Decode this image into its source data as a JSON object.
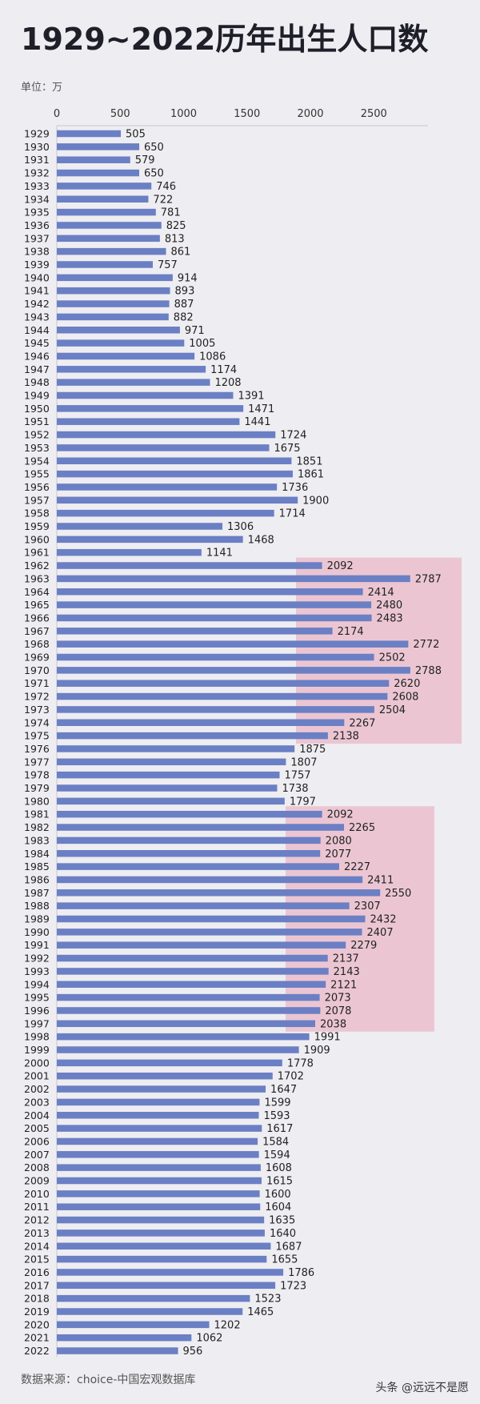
{
  "page": {
    "title": "1929~2022历年出生人口数",
    "unit": "单位：万",
    "source": "数据来源：choice-中国宏观数据库",
    "platform_mark": "头条 @远远不是愿"
  },
  "chart_data": {
    "type": "bar",
    "orientation": "horizontal",
    "title": "1929~2022历年出生人口数",
    "xlim": [
      0,
      2900
    ],
    "xticks": [
      0,
      500,
      1000,
      1500,
      2000,
      2500
    ],
    "grid": false,
    "bar_color": "#6b7fc4",
    "highlight_color": "#e9a5b8",
    "highlight_ranges": [
      [
        "1962",
        "1975"
      ],
      [
        "1981",
        "1997"
      ]
    ],
    "categories": [
      "1929",
      "1930",
      "1931",
      "1932",
      "1933",
      "1934",
      "1935",
      "1936",
      "1937",
      "1938",
      "1939",
      "1940",
      "1941",
      "1942",
      "1943",
      "1944",
      "1945",
      "1946",
      "1947",
      "1948",
      "1949",
      "1950",
      "1951",
      "1952",
      "1953",
      "1954",
      "1955",
      "1956",
      "1957",
      "1958",
      "1959",
      "1960",
      "1961",
      "1962",
      "1963",
      "1964",
      "1965",
      "1966",
      "1967",
      "1968",
      "1969",
      "1970",
      "1971",
      "1972",
      "1973",
      "1974",
      "1975",
      "1976",
      "1977",
      "1978",
      "1979",
      "1980",
      "1981",
      "1982",
      "1983",
      "1984",
      "1985",
      "1986",
      "1987",
      "1988",
      "1989",
      "1990",
      "1991",
      "1992",
      "1993",
      "1994",
      "1995",
      "1996",
      "1997",
      "1998",
      "1999",
      "2000",
      "2001",
      "2002",
      "2003",
      "2004",
      "2005",
      "2006",
      "2007",
      "2008",
      "2009",
      "2010",
      "2011",
      "2012",
      "2013",
      "2014",
      "2015",
      "2016",
      "2017",
      "2018",
      "2019",
      "2020",
      "2021",
      "2022"
    ],
    "values": [
      505,
      650,
      579,
      650,
      746,
      722,
      781,
      825,
      813,
      861,
      757,
      914,
      893,
      887,
      882,
      971,
      1005,
      1086,
      1174,
      1208,
      1391,
      1471,
      1441,
      1724,
      1675,
      1851,
      1861,
      1736,
      1900,
      1714,
      1306,
      1468,
      1141,
      2092,
      2787,
      2414,
      2480,
      2483,
      2174,
      2772,
      2502,
      2788,
      2620,
      2608,
      2504,
      2267,
      2138,
      1875,
      1807,
      1757,
      1738,
      1797,
      2092,
      2265,
      2080,
      2077,
      2227,
      2411,
      2550,
      2307,
      2432,
      2407,
      2279,
      2137,
      2143,
      2121,
      2073,
      2078,
      2038,
      1991,
      1909,
      1778,
      1702,
      1647,
      1599,
      1593,
      1617,
      1584,
      1594,
      1608,
      1615,
      1600,
      1604,
      1635,
      1640,
      1687,
      1655,
      1786,
      1723,
      1523,
      1465,
      1202,
      1062,
      956
    ]
  }
}
